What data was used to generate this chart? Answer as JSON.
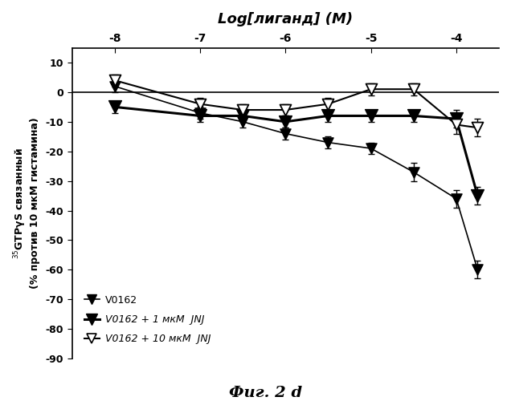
{
  "title": "Log[лиганд] (M)",
  "ylabel": "$^{35}$GTPγS связанный\n(% против 10 мкМ гистамина)",
  "caption": "Фиг. 2 d",
  "xlim": [
    -8.5,
    -3.5
  ],
  "ylim": [
    -90,
    15
  ],
  "yticks": [
    -90,
    -80,
    -70,
    -60,
    -50,
    -40,
    -30,
    -20,
    -10,
    0,
    10
  ],
  "xtick_labels": [
    "-8",
    "-7",
    "-6",
    "-5",
    "-4"
  ],
  "xtick_positions": [
    -8,
    -7,
    -6,
    -5,
    -4
  ],
  "series1_x": [
    -8,
    -7,
    -6.5,
    -6,
    -5.5,
    -5,
    -4.5,
    -4,
    -3.75
  ],
  "series1_y": [
    2,
    -7,
    -10,
    -14,
    -17,
    -19,
    -27,
    -36,
    -60
  ],
  "series1_yerr": [
    2,
    2,
    2,
    2,
    2,
    2,
    3,
    3,
    3
  ],
  "series2_x": [
    -8,
    -7,
    -6.5,
    -6,
    -5.5,
    -5,
    -4.5,
    -4,
    -3.75
  ],
  "series2_y": [
    -5,
    -8,
    -8,
    -10,
    -8,
    -8,
    -8,
    -9,
    -35
  ],
  "series2_yerr": [
    2,
    2,
    2,
    2,
    2,
    2,
    2,
    3,
    3
  ],
  "series3_x": [
    -8,
    -7,
    -6.5,
    -6,
    -5.5,
    -5,
    -4.5,
    -4,
    -3.75
  ],
  "series3_y": [
    4,
    -4,
    -6,
    -6,
    -4,
    1,
    1,
    -11,
    -12
  ],
  "series3_yerr": [
    2,
    2,
    2,
    2,
    2,
    2,
    2,
    3,
    3
  ],
  "legend_label1": "V0162",
  "legend_label2": "V0162 + 1 мкМ  JNJ",
  "legend_label3": "V0162 + 10 мкМ  JNJ"
}
